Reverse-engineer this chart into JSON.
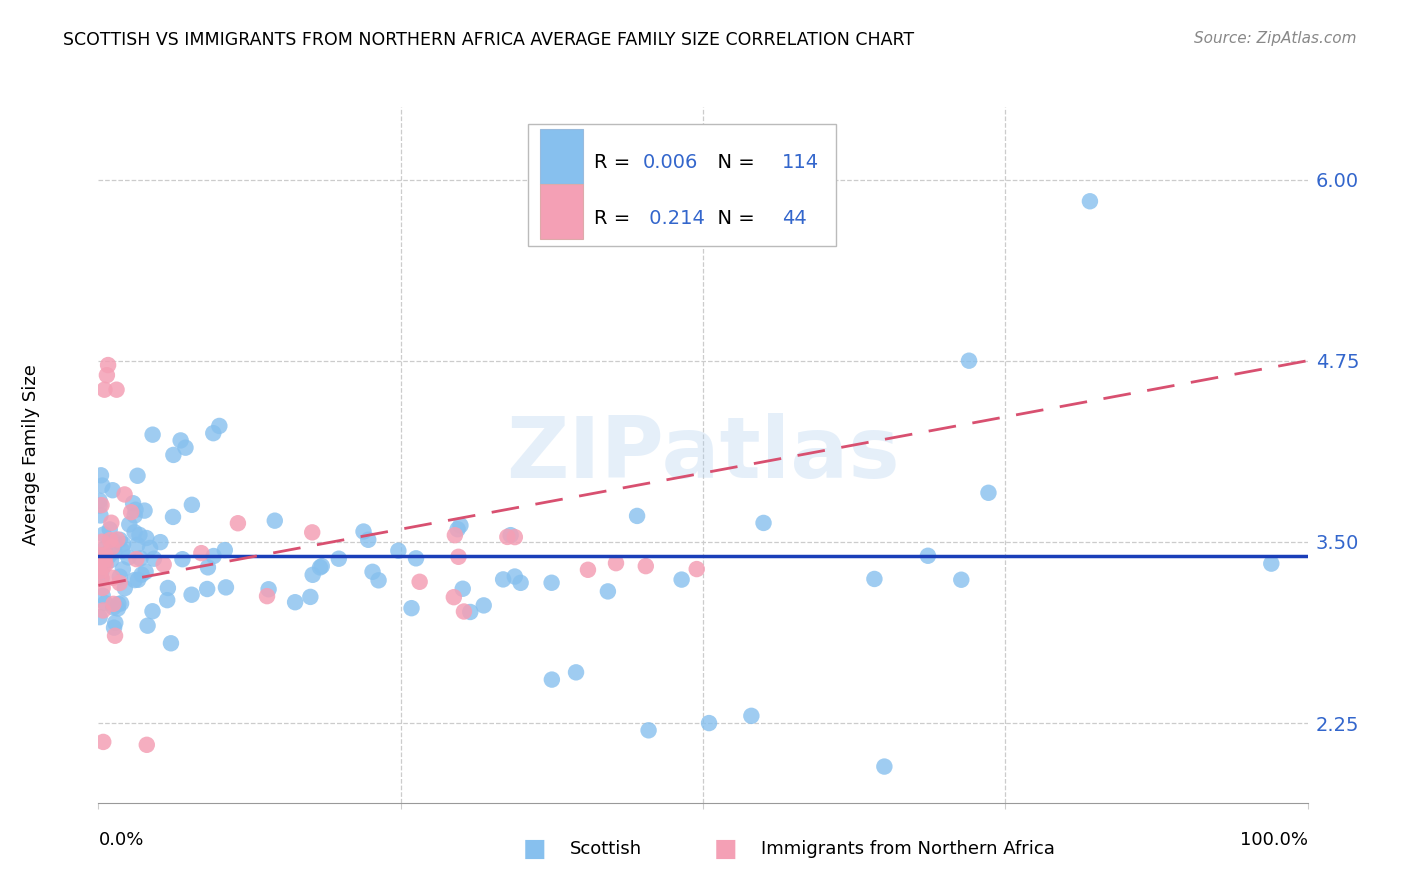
{
  "title": "SCOTTISH VS IMMIGRANTS FROM NORTHERN AFRICA AVERAGE FAMILY SIZE CORRELATION CHART",
  "source": "Source: ZipAtlas.com",
  "ylabel": "Average Family Size",
  "yticks": [
    2.25,
    3.5,
    4.75,
    6.0
  ],
  "legend_label_1": "Scottish",
  "legend_label_2": "Immigrants from Northern Africa",
  "r1": "0.006",
  "n1": "114",
  "r2": "0.214",
  "n2": "44",
  "color_blue": "#87c0ee",
  "color_pink": "#f4a0b5",
  "color_blue_line": "#1a3eb8",
  "color_pink_line": "#d85070",
  "color_text_blue": "#3366cc",
  "background_color": "#ffffff",
  "grid_color": "#cccccc",
  "ymin": 1.7,
  "ymax": 6.5,
  "xmin": 0.0,
  "xmax": 1.0,
  "blue_line_y0": 3.4,
  "blue_line_y1": 3.4,
  "pink_line_y0": 3.2,
  "pink_line_y1": 4.75
}
